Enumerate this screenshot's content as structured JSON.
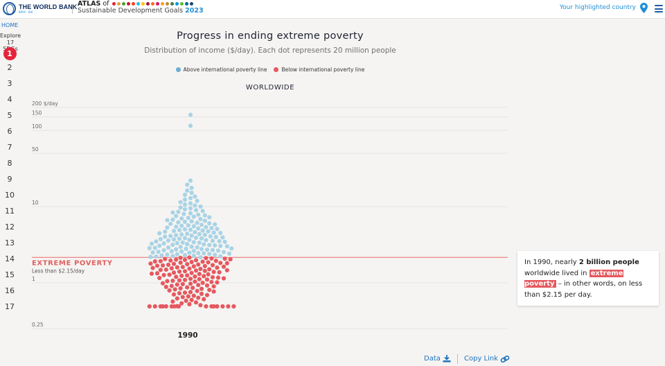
{
  "header": {
    "org_name": "THE WORLD BANK",
    "org_sub": "IBRD · IDA",
    "atlas_prefix": "ATLAS",
    "atlas_of": "of",
    "atlas_title": "Sustainable Development Goals",
    "atlas_year": "2023",
    "sdg_colors": [
      "#e5243b",
      "#dda63a",
      "#4c9f38",
      "#c5192d",
      "#ff3a21",
      "#26bde2",
      "#fcc30b",
      "#a21942",
      "#fd6925",
      "#dd1367",
      "#fd9d24",
      "#bf8b2e",
      "#3f7e44",
      "#0a97d9",
      "#56c02b",
      "#00689d",
      "#19486a"
    ],
    "highlight_country_label": "Your highlighted country",
    "pin_icon": "map-pin-icon",
    "menu_icon": "hamburger-menu-icon"
  },
  "sidebar": {
    "home_label": "HOME",
    "explore_line1": "Explore",
    "explore_line2": "17 SDGs",
    "items": [
      "1",
      "2",
      "3",
      "4",
      "5",
      "6",
      "7",
      "8",
      "9",
      "10",
      "11",
      "12",
      "13",
      "14",
      "15",
      "16",
      "17"
    ],
    "active_index": 0
  },
  "chart_data": {
    "type": "scatter",
    "subtype": "beeswarm",
    "title": "Progress in ending extreme poverty",
    "subtitle": "Distribution of income ($/day). Each dot represents 20 million people",
    "region": "WORLDWIDE",
    "legend": [
      {
        "label": "Above international poverty line",
        "color": "#6aaed6"
      },
      {
        "label": "Below international poverty line",
        "color": "#e5595f"
      }
    ],
    "legend_position": "top-center",
    "dot_colors": {
      "above": "#a9d3e6",
      "below": "#e5595f"
    },
    "yscale": "log",
    "ylim": [
      0.25,
      200
    ],
    "ylabel_unit": "$/day",
    "y_ticks": [
      {
        "value": 200,
        "label": "200 $/day"
      },
      {
        "value": 150,
        "label": "150"
      },
      {
        "value": 100,
        "label": "100"
      },
      {
        "value": 50,
        "label": "50"
      },
      {
        "value": 10,
        "label": "10"
      },
      {
        "value": 1,
        "label": "1"
      },
      {
        "value": 0.25,
        "label": "0.25"
      }
    ],
    "poverty_line": {
      "value": 2.15,
      "label": "EXTREME POVERTY",
      "sublabel": "Less than $2.15/day",
      "color": "#e5595f"
    },
    "x_categories": [
      "1990"
    ],
    "people_per_dot_millions": 20,
    "dots_above": 170,
    "dots_below": 98,
    "grid": true
  },
  "annotation": {
    "text_1": "In 1990, nearly ",
    "bold": "2 billion people",
    "text_2": " worldwide lived in ",
    "highlight": "extreme poverty",
    "text_3": " – in other words, on less than $2.15 per day."
  },
  "footer": {
    "data_label": "Data",
    "download_icon": "download-icon",
    "copy_link_label": "Copy Link",
    "link_icon": "link-icon"
  }
}
